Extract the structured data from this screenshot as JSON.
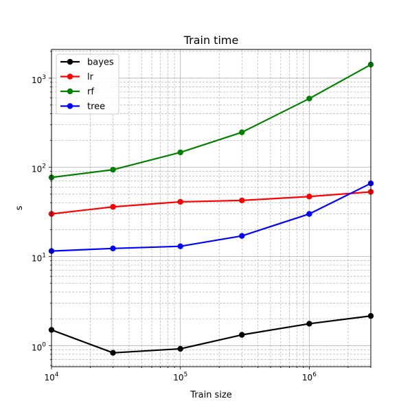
{
  "chart_data": {
    "type": "line",
    "title": "Train time",
    "xlabel": "Train size",
    "ylabel": "s",
    "xscale": "log",
    "yscale": "log",
    "xlim": [
      10000,
      3000000
    ],
    "ylim": [
      0.58,
      2100
    ],
    "grid": true,
    "legend_position": "top-left",
    "x_ticks": [
      {
        "value": 10000,
        "base": "10",
        "exp": "4"
      },
      {
        "value": 100000,
        "base": "10",
        "exp": "5"
      },
      {
        "value": 1000000,
        "base": "10",
        "exp": "6"
      }
    ],
    "y_ticks": [
      {
        "value": 1,
        "base": "10",
        "exp": "0"
      },
      {
        "value": 10,
        "base": "10",
        "exp": "1"
      },
      {
        "value": 100,
        "base": "10",
        "exp": "2"
      },
      {
        "value": 1000,
        "base": "10",
        "exp": "3"
      }
    ],
    "x": [
      10000,
      30000,
      100000,
      300000,
      1000000,
      3000000
    ],
    "series": [
      {
        "name": "bayes",
        "color": "#000000",
        "values": [
          1.5,
          0.83,
          0.92,
          1.32,
          1.76,
          2.15
        ]
      },
      {
        "name": "lr",
        "color": "#ff0000",
        "values": [
          30,
          36,
          41,
          42.5,
          47,
          53
        ]
      },
      {
        "name": "rf",
        "color": "#008000",
        "values": [
          77,
          94,
          147,
          247,
          590,
          1420
        ]
      },
      {
        "name": "tree",
        "color": "#0000ff",
        "values": [
          11.5,
          12.3,
          13,
          17,
          30,
          66
        ]
      }
    ]
  }
}
